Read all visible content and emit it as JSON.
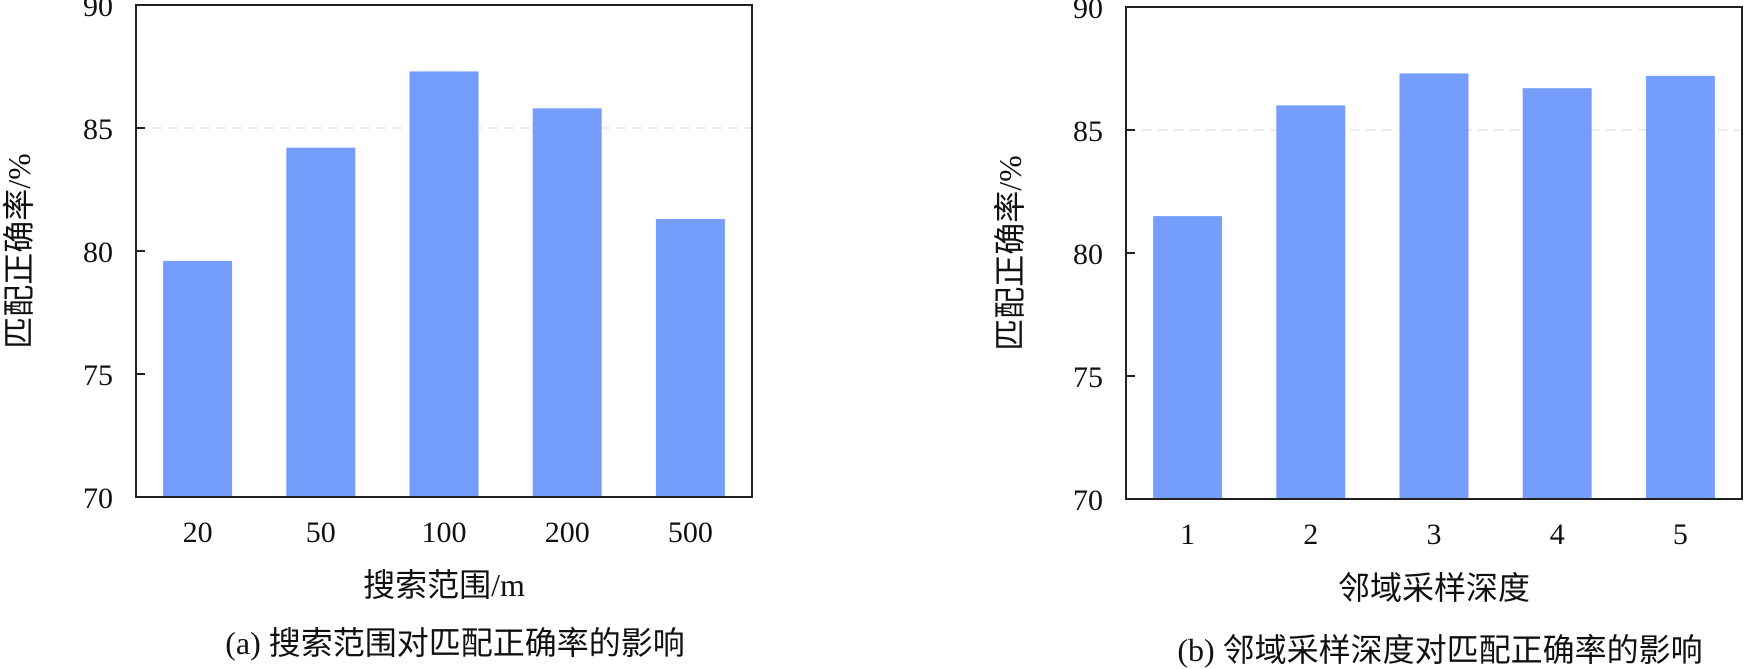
{
  "colors": {
    "bar": "#759dfb",
    "axis": "#222222",
    "grid": "#e6e6e6"
  },
  "chart_data": [
    {
      "type": "bar",
      "caption": "(a) 搜索范围对匹配正确率的影响",
      "xlabel": "搜索范围/m",
      "ylabel": "匹配正确率/%",
      "categories": [
        "20",
        "50",
        "100",
        "200",
        "500"
      ],
      "values": [
        79.6,
        84.2,
        87.3,
        85.8,
        81.3
      ],
      "ylim": [
        70,
        90
      ],
      "yticks": [
        "70",
        "75",
        "80",
        "85",
        "90"
      ],
      "grid": "horizontal dashed at 85"
    },
    {
      "type": "bar",
      "caption": "(b) 邻域采样深度对匹配正确率的影响",
      "xlabel": "邻域采样深度",
      "ylabel": "匹配正确率/%",
      "categories": [
        "1",
        "2",
        "3",
        "4",
        "5"
      ],
      "values": [
        81.5,
        86.0,
        87.3,
        86.7,
        87.2
      ],
      "ylim": [
        70,
        90
      ],
      "yticks": [
        "70",
        "75",
        "80",
        "85",
        "90"
      ],
      "grid": "horizontal dashed at 85"
    }
  ]
}
